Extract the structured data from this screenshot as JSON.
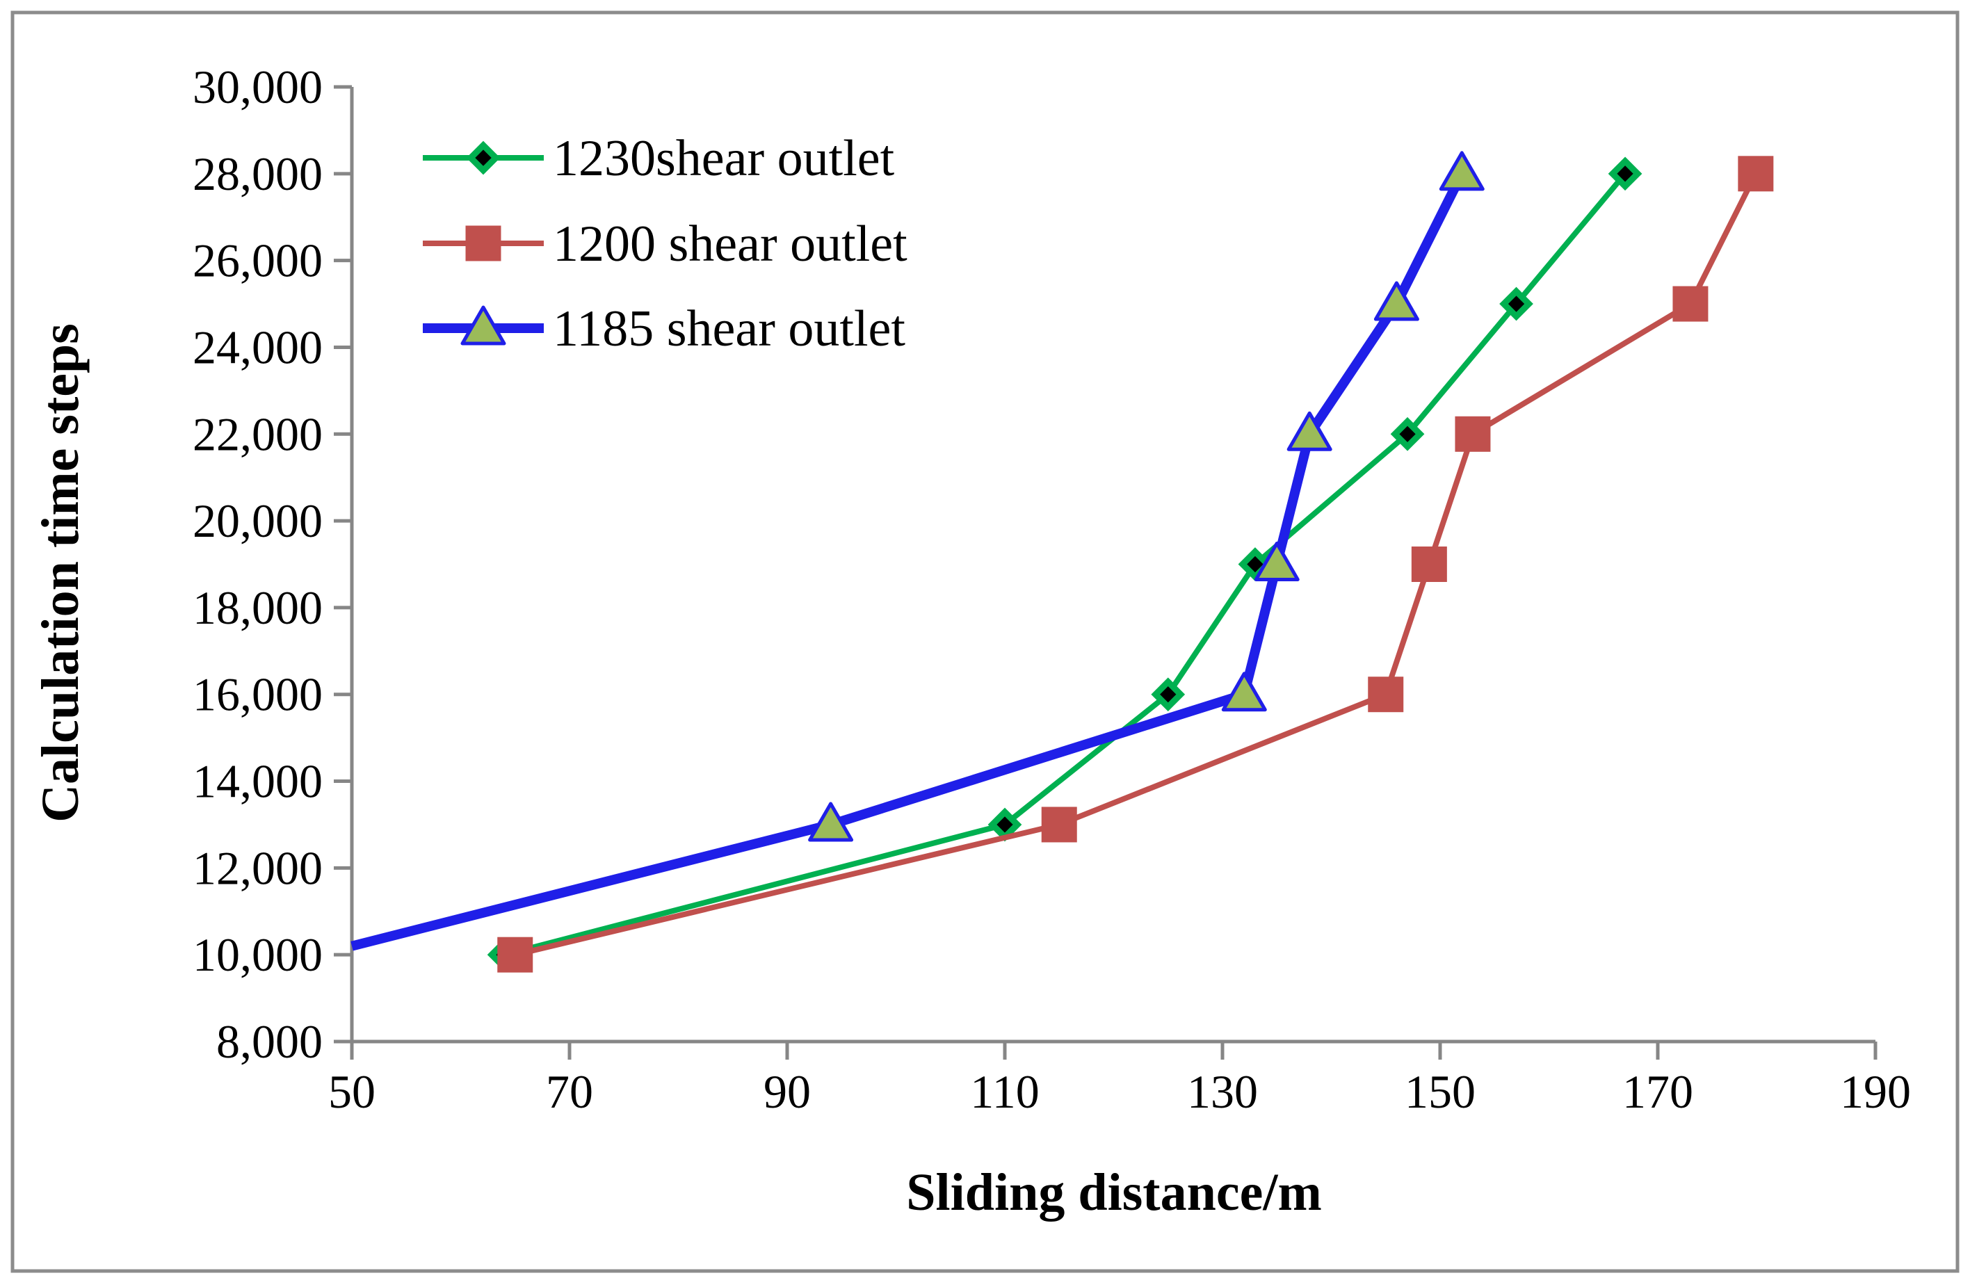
{
  "chart_data": {
    "type": "line",
    "title": "",
    "xlabel": "Sliding distance/m",
    "ylabel": "Calculation time steps",
    "xlim": [
      50,
      190
    ],
    "ylim": [
      8000,
      30000
    ],
    "x_ticks": [
      "50",
      "70",
      "90",
      "110",
      "130",
      "150",
      "170",
      "190"
    ],
    "y_ticks": [
      "8,000",
      "10,000",
      "12,000",
      "14,000",
      "16,000",
      "18,000",
      "20,000",
      "22,000",
      "24,000",
      "26,000",
      "28,000",
      "30,000"
    ],
    "x_tick_values": [
      50,
      70,
      90,
      110,
      130,
      150,
      170,
      190
    ],
    "y_tick_values": [
      8000,
      10000,
      12000,
      14000,
      16000,
      18000,
      20000,
      22000,
      24000,
      26000,
      28000,
      30000
    ],
    "grid": false,
    "legend_position": "top-left",
    "series": [
      {
        "name": "1230shear outlet",
        "color": "#00b050",
        "marker": "diamond",
        "marker_fill": "#000000",
        "points": [
          [
            64,
            10000
          ],
          [
            110,
            13000
          ],
          [
            125,
            16000
          ],
          [
            133,
            19000
          ],
          [
            147,
            22000
          ],
          [
            157,
            25000
          ],
          [
            167,
            28000
          ]
        ]
      },
      {
        "name": "1200 shear outlet",
        "color": "#c0504d",
        "marker": "square",
        "marker_fill": "#c0504d",
        "points": [
          [
            65,
            10000
          ],
          [
            115,
            13000
          ],
          [
            145,
            16000
          ],
          [
            149,
            19000
          ],
          [
            153,
            22000
          ],
          [
            173,
            25000
          ],
          [
            179,
            28000
          ]
        ]
      },
      {
        "name": "1185 shear outlet",
        "color": "#1f1fe8",
        "marker": "triangle",
        "marker_fill": "#9bbb59",
        "points": [
          [
            50,
            10200
          ],
          [
            94,
            13000
          ],
          [
            132,
            16000
          ],
          [
            135,
            19000
          ],
          [
            138,
            22000
          ],
          [
            146,
            25000
          ],
          [
            152,
            28000
          ]
        ]
      }
    ]
  }
}
